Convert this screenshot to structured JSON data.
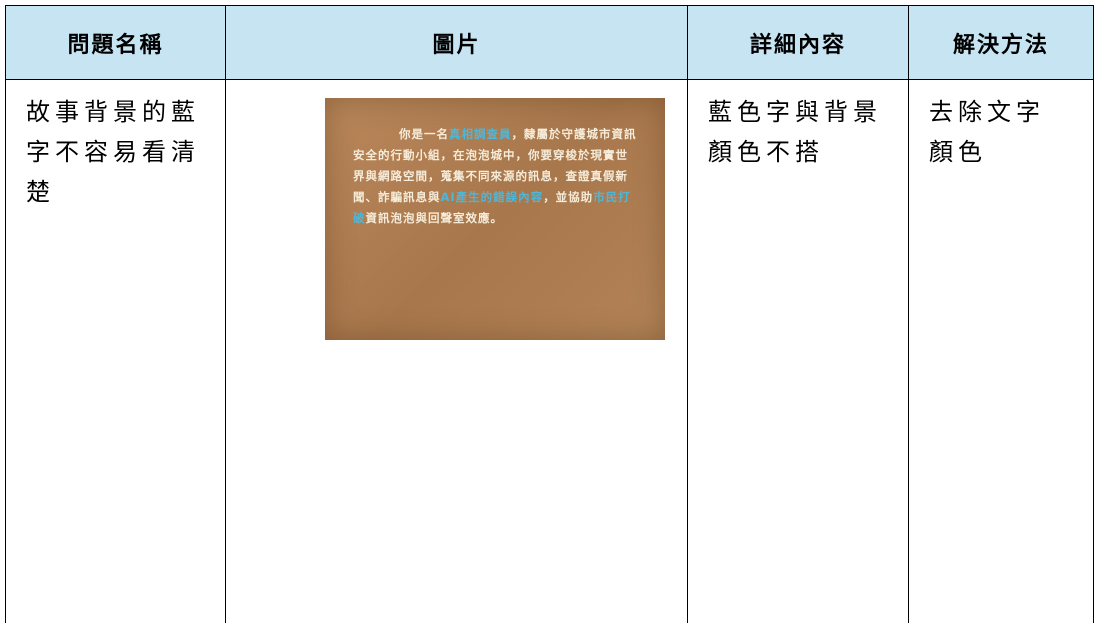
{
  "table": {
    "header": [
      "問題名稱",
      "圖片",
      "詳細內容",
      "解決方法"
    ],
    "rows": [
      {
        "problem": "故事背景的藍字不容易看清楚",
        "image_text": [
          "你是一名",
          "真相調查員",
          "，隸屬於守護城市資訊安全的行動小組，在泡泡城中，你要穿梭於現實世界與網路空間，蒐集不同來源的訊息，查證真假新聞、詐騙訊息與",
          "AI產生的錯誤內容",
          "，並協助",
          "市民打破",
          "資訊泡泡與回聲室效應。"
        ],
        "details": "藍色字與背景顏色不搭",
        "solution": "去除文字顏色"
      }
    ]
  }
}
